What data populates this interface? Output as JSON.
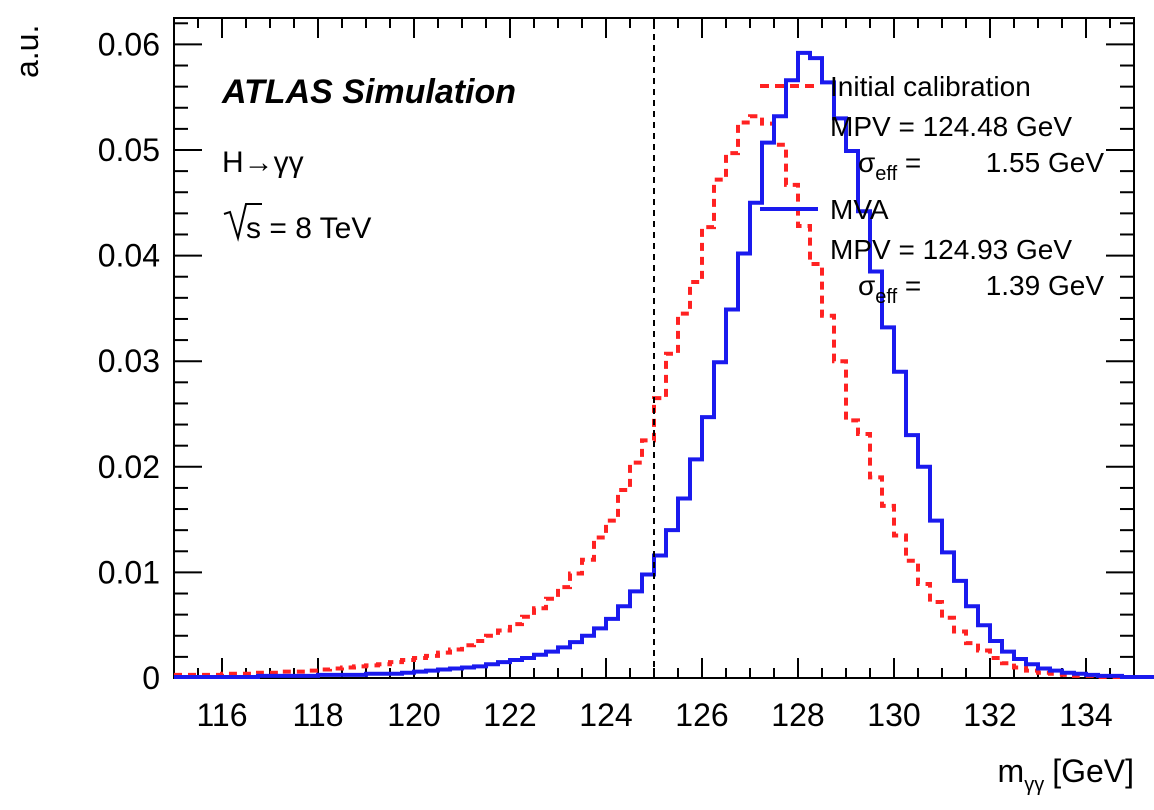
{
  "chart_data": {
    "type": "line",
    "title": "",
    "experiment_label": "ATLAS Simulation",
    "process_label": "H→γγ",
    "energy_label": "s = 8 TeV",
    "energy_root_symbol": "√",
    "xlabel": "m",
    "xlabel_sub": "γγ",
    "xlabel_unit": "[GeV]",
    "ylabel": "a.u.",
    "xlim": [
      115,
      135
    ],
    "ylim": [
      0,
      0.0625
    ],
    "xticks": [
      116,
      118,
      120,
      122,
      124,
      126,
      128,
      130,
      132,
      134
    ],
    "yticks": [
      0,
      0.01,
      0.02,
      0.03,
      0.04,
      0.05,
      0.06
    ],
    "ytick_labels": [
      "0",
      "0.01",
      "0.02",
      "0.03",
      "0.04",
      "0.05",
      "0.06"
    ],
    "reference_line_x": 125,
    "bin_width": 0.25,
    "bin_start": 115,
    "series": [
      {
        "name": "Initial calibration",
        "style": "dashed",
        "color": "#ff2222",
        "mpv_label": "MPV = 124.48 GeV",
        "sigma_symbol": "σ",
        "sigma_sub": "eff",
        "sigma_eq": " = ",
        "sigma_value": "1.55 GeV",
        "values": [
          0.0003,
          0.0003,
          0.0003,
          0.0003,
          0.0004,
          0.0004,
          0.0004,
          0.0005,
          0.0005,
          0.0006,
          0.0006,
          0.0007,
          0.0008,
          0.0009,
          0.001,
          0.0011,
          0.0012,
          0.0013,
          0.0015,
          0.0017,
          0.0019,
          0.0021,
          0.0024,
          0.0027,
          0.0031,
          0.0035,
          0.004,
          0.0045,
          0.0051,
          0.0058,
          0.0066,
          0.0075,
          0.0086,
          0.0099,
          0.0112,
          0.0133,
          0.0149,
          0.0178,
          0.0204,
          0.0225,
          0.0265,
          0.0307,
          0.0345,
          0.0375,
          0.0427,
          0.0472,
          0.0497,
          0.0526,
          0.0532,
          0.0525,
          0.0505,
          0.0467,
          0.0428,
          0.0392,
          0.0343,
          0.03,
          0.0244,
          0.0231,
          0.019,
          0.0163,
          0.0135,
          0.0111,
          0.0089,
          0.0072,
          0.0057,
          0.0044,
          0.0033,
          0.0026,
          0.0019,
          0.0014,
          0.001,
          0.0007,
          0.0005,
          0.0004,
          0.0003,
          0.0002,
          0.0002,
          0.0001,
          0.0001,
          0.0001,
          0.0001,
          0.0001,
          0.0001,
          0.0001,
          0.0001,
          0.0001,
          0.0001,
          0.0001,
          0.0001,
          0.0001
        ]
      },
      {
        "name": "MVA",
        "style": "solid",
        "color": "#1a1aee",
        "mpv_label": "MPV = 124.93 GeV",
        "sigma_symbol": "σ",
        "sigma_sub": "eff",
        "sigma_eq": " = ",
        "sigma_value": "1.39 GeV",
        "values": [
          0.0001,
          0.0001,
          0.0001,
          0.0001,
          0.0001,
          0.0001,
          0.0001,
          0.0002,
          0.0002,
          0.0002,
          0.0002,
          0.0002,
          0.0003,
          0.0003,
          0.0003,
          0.0003,
          0.0004,
          0.0004,
          0.0004,
          0.0005,
          0.0006,
          0.0007,
          0.0008,
          0.0009,
          0.001,
          0.0011,
          0.0013,
          0.0015,
          0.0017,
          0.0019,
          0.0022,
          0.0025,
          0.0029,
          0.0034,
          0.004,
          0.0047,
          0.0056,
          0.0068,
          0.0082,
          0.0098,
          0.0116,
          0.014,
          0.017,
          0.0207,
          0.0247,
          0.0299,
          0.0349,
          0.0402,
          0.045,
          0.0507,
          0.0532,
          0.0566,
          0.0592,
          0.0587,
          0.0564,
          0.053,
          0.0499,
          0.0442,
          0.0385,
          0.0332,
          0.029,
          0.023,
          0.02,
          0.0149,
          0.0119,
          0.0092,
          0.0068,
          0.005,
          0.0035,
          0.0025,
          0.0018,
          0.0013,
          0.0009,
          0.0007,
          0.0005,
          0.0004,
          0.0003,
          0.0002,
          0.0002,
          0.0001,
          0.0001,
          0.0001,
          0.0001,
          0.0001,
          0.0001,
          0.0001,
          0.0001,
          0.0001,
          0.0001,
          0.0001
        ]
      }
    ]
  }
}
